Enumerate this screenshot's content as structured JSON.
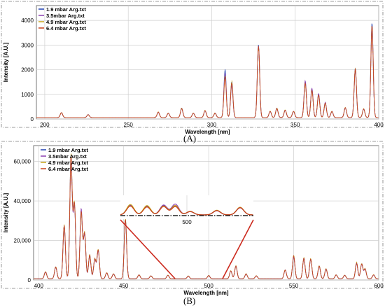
{
  "colors": {
    "series": [
      "#1f3fb0",
      "#8b3fb0",
      "#c8a419",
      "#c9401a"
    ],
    "callout": "#cc2a1e",
    "grid": "#cfcfcf",
    "frame": "#7d7d7d"
  },
  "chart_data": [
    {
      "type": "line",
      "panel_label": "(A)",
      "xlabel": "Wavelength [nm]",
      "ylabel": "Intensity [A.U.]",
      "xlim": [
        195,
        400
      ],
      "ylim": [
        0,
        4600
      ],
      "xticks": [
        200,
        250,
        300,
        350,
        400
      ],
      "yticks": [
        0,
        1000,
        2000,
        3000,
        4000
      ],
      "ytick_labels": [
        "0",
        "1000",
        "2000",
        "3000",
        "4000"
      ],
      "grid": true,
      "legend_position": "top-left",
      "series": [
        {
          "name": "1.9 mbar Arg.txt"
        },
        {
          "name": "3.5mbar Arg.txt"
        },
        {
          "name": "4.9 mbar Arg.txt"
        },
        {
          "name": "6.4 mbar Arg.txt"
        }
      ],
      "baseline": 60,
      "peaks": [
        {
          "x": 210,
          "y": [
            200,
            190,
            210,
            200
          ]
        },
        {
          "x": 226,
          "y": [
            120,
            110,
            120,
            115
          ]
        },
        {
          "x": 268,
          "y": [
            220,
            210,
            230,
            220
          ]
        },
        {
          "x": 274,
          "y": [
            180,
            170,
            180,
            175
          ]
        },
        {
          "x": 282,
          "y": [
            380,
            360,
            390,
            370
          ]
        },
        {
          "x": 289,
          "y": [
            180,
            170,
            180,
            175
          ]
        },
        {
          "x": 296,
          "y": [
            280,
            270,
            290,
            280
          ]
        },
        {
          "x": 302,
          "y": [
            180,
            170,
            190,
            180
          ]
        },
        {
          "x": 308,
          "y": [
            1950,
            1800,
            1700,
            1650
          ]
        },
        {
          "x": 312,
          "y": [
            1450,
            1300,
            1500,
            1400
          ]
        },
        {
          "x": 328,
          "y": [
            2950,
            2900,
            2850,
            2900
          ]
        },
        {
          "x": 335,
          "y": [
            250,
            240,
            260,
            250
          ]
        },
        {
          "x": 339,
          "y": [
            380,
            360,
            390,
            370
          ]
        },
        {
          "x": 344,
          "y": [
            300,
            290,
            310,
            300
          ]
        },
        {
          "x": 349,
          "y": [
            250,
            240,
            260,
            250
          ]
        },
        {
          "x": 356,
          "y": [
            1450,
            1500,
            1350,
            1400
          ]
        },
        {
          "x": 360,
          "y": [
            1150,
            1200,
            1100,
            1100
          ]
        },
        {
          "x": 364,
          "y": [
            950,
            980,
            900,
            920
          ]
        },
        {
          "x": 368,
          "y": [
            600,
            620,
            580,
            590
          ]
        },
        {
          "x": 372,
          "y": [
            250,
            240,
            260,
            250
          ]
        },
        {
          "x": 380,
          "y": [
            400,
            390,
            410,
            400
          ]
        },
        {
          "x": 386,
          "y": [
            2000,
            1950,
            2000,
            1980
          ]
        },
        {
          "x": 391,
          "y": [
            350,
            340,
            360,
            350
          ]
        },
        {
          "x": 396,
          "y": [
            3850,
            3600,
            3700,
            3750
          ]
        }
      ]
    },
    {
      "type": "line",
      "panel_label": "(B)",
      "xlabel": "Wavelength [nm]",
      "ylabel": "Intensity [A.U.]",
      "xlim": [
        397,
        600
      ],
      "ylim": [
        0,
        68000
      ],
      "xticks": [
        400,
        450,
        500,
        550,
        600
      ],
      "yticks": [
        0,
        20000,
        40000,
        60000
      ],
      "ytick_labels": [
        "0",
        "20,000",
        "40,000",
        "60,000"
      ],
      "grid": true,
      "legend_position": "top-left",
      "series": [
        {
          "name": "1.9 mbar Arg.txt"
        },
        {
          "name": "3.5mbar Arg.txt"
        },
        {
          "name": "4.9 mbar Arg.txt"
        },
        {
          "name": "6.4 mbar Arg.txt"
        }
      ],
      "baseline": 600,
      "peaks": [
        {
          "x": 404,
          "y": [
            3500,
            3400,
            3600,
            3500
          ]
        },
        {
          "x": 410,
          "y": [
            6000,
            5800,
            6200,
            6000
          ]
        },
        {
          "x": 415,
          "y": [
            27000,
            26500,
            27500,
            27000
          ]
        },
        {
          "x": 419,
          "y": [
            62000,
            61000,
            63000,
            62000
          ]
        },
        {
          "x": 421,
          "y": [
            38000,
            37000,
            38500,
            38000
          ]
        },
        {
          "x": 425,
          "y": [
            34000,
            35500,
            33000,
            34000
          ]
        },
        {
          "x": 427,
          "y": [
            23000,
            22000,
            23500,
            23000
          ]
        },
        {
          "x": 430,
          "y": [
            12000,
            11500,
            12500,
            12000
          ]
        },
        {
          "x": 433,
          "y": [
            10000,
            9800,
            10200,
            10000
          ]
        },
        {
          "x": 435,
          "y": [
            14500,
            14000,
            15000,
            14500
          ]
        },
        {
          "x": 440,
          "y": [
            3000,
            2900,
            3100,
            3000
          ]
        },
        {
          "x": 444,
          "y": [
            2500,
            2400,
            2600,
            2500
          ]
        },
        {
          "x": 451,
          "y": [
            30000,
            29500,
            30500,
            30000
          ]
        },
        {
          "x": 459,
          "y": [
            2000,
            1900,
            2100,
            2000
          ]
        },
        {
          "x": 466,
          "y": [
            1500,
            1400,
            1600,
            1500
          ]
        },
        {
          "x": 476,
          "y": [
            1800,
            1700,
            1900,
            1800
          ]
        },
        {
          "x": 488,
          "y": [
            1400,
            1300,
            1500,
            1400
          ]
        },
        {
          "x": 500,
          "y": [
            1700,
            1600,
            1800,
            1700
          ]
        },
        {
          "x": 513,
          "y": [
            4000,
            3900,
            4100,
            4000
          ]
        },
        {
          "x": 516,
          "y": [
            6500,
            6300,
            6700,
            6500
          ]
        },
        {
          "x": 522,
          "y": [
            2500,
            2400,
            2600,
            2500
          ]
        },
        {
          "x": 528,
          "y": [
            1500,
            1400,
            1600,
            1500
          ]
        },
        {
          "x": 545,
          "y": [
            4500,
            4400,
            4600,
            4500
          ]
        },
        {
          "x": 550,
          "y": [
            11500,
            11000,
            12000,
            11500
          ]
        },
        {
          "x": 556,
          "y": [
            10500,
            10200,
            10800,
            10500
          ]
        },
        {
          "x": 560,
          "y": [
            10000,
            9700,
            10300,
            10000
          ]
        },
        {
          "x": 565,
          "y": [
            6500,
            6300,
            6700,
            6500
          ]
        },
        {
          "x": 569,
          "y": [
            5000,
            4800,
            5200,
            5000
          ]
        },
        {
          "x": 575,
          "y": [
            2000,
            1900,
            2100,
            2000
          ]
        },
        {
          "x": 580,
          "y": [
            1800,
            1700,
            1900,
            1800
          ]
        },
        {
          "x": 587,
          "y": [
            8000,
            7500,
            8500,
            8000
          ]
        },
        {
          "x": 590,
          "y": [
            7500,
            7300,
            7700,
            7500
          ]
        },
        {
          "x": 592,
          "y": [
            5000,
            4800,
            5200,
            5000
          ]
        },
        {
          "x": 597,
          "y": [
            2000,
            1900,
            2100,
            2000
          ]
        }
      ],
      "inset": {
        "xtick_label": "500",
        "xlim": [
          460,
          540
        ],
        "xtick": 500,
        "peaks": [
          {
            "x": 466,
            "y": [
              1.0,
              0.95,
              1.05,
              0.9
            ]
          },
          {
            "x": 476,
            "y": [
              0.9,
              0.85,
              0.95,
              0.8
            ]
          },
          {
            "x": 486,
            "y": [
              0.95,
              1.0,
              0.9,
              0.85
            ]
          },
          {
            "x": 493,
            "y": [
              0.9,
              1.1,
              0.95,
              0.85
            ]
          },
          {
            "x": 502,
            "y": [
              0.35,
              0.33,
              0.36,
              0.34
            ]
          },
          {
            "x": 518,
            "y": [
              0.45,
              0.42,
              0.47,
              0.44
            ]
          },
          {
            "x": 532,
            "y": [
              0.75,
              0.72,
              0.78,
              0.74
            ]
          }
        ]
      }
    }
  ]
}
